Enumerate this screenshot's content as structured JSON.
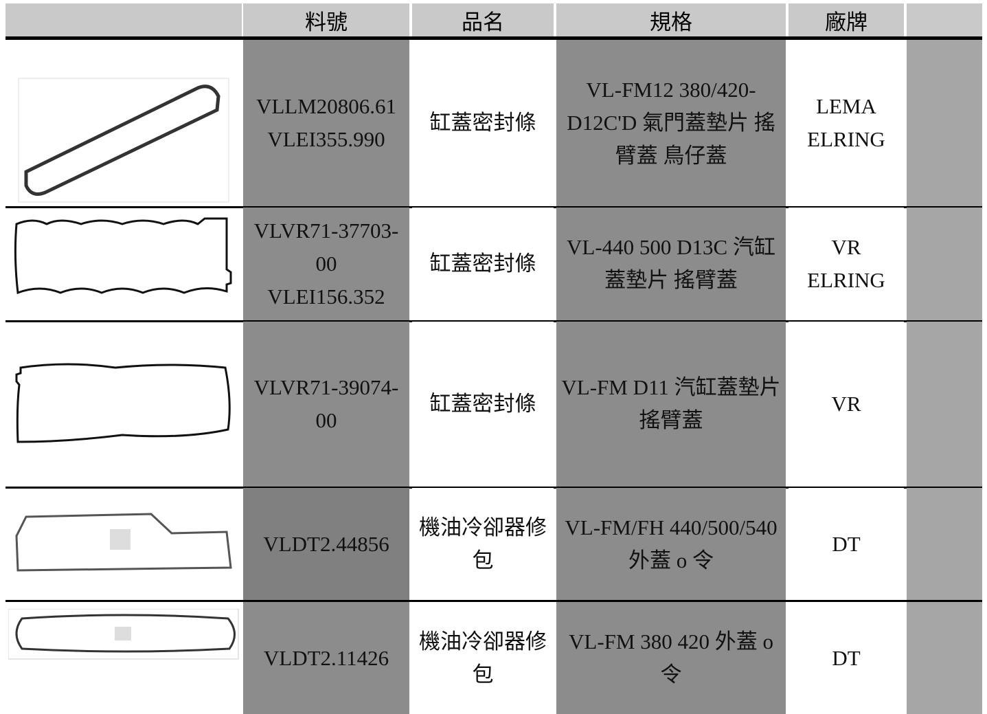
{
  "header": {
    "columns": [
      "料號",
      "品名",
      "規格",
      "廠牌"
    ]
  },
  "table": {
    "rows": [
      {
        "part_numbers": [
          "VLLM20806.61",
          "VLEI355.990"
        ],
        "name": "缸蓋密封條",
        "spec": "VL-FM12 380/420-D12C'D 氣門蓋墊片 搖臂蓋 鳥仔蓋",
        "brands": [
          "LEMA",
          "ELRING"
        ]
      },
      {
        "part_numbers": [
          "VLVR71-37703-00",
          "VLEI156.352"
        ],
        "name": "缸蓋密封條",
        "spec": "VL-440 500 D13C 汽缸蓋墊片 搖臂蓋",
        "brands": [
          "VR",
          "ELRING"
        ]
      },
      {
        "part_numbers": [
          "VLVR71-39074-00"
        ],
        "name": "缸蓋密封條",
        "spec": "VL-FM D11 汽缸蓋墊片 搖臂蓋",
        "brands": [
          "VR"
        ]
      },
      {
        "part_numbers": [
          "VLDT2.44856"
        ],
        "name": "機油冷卻器修包",
        "spec": "VL-FM/FH 440/500/540 外蓋 o 令",
        "brands": [
          "DT"
        ]
      },
      {
        "part_numbers": [
          "VLDT2.11426"
        ],
        "name": "機油冷卻器修包",
        "spec": "VL-FM 380 420 外蓋 o 令",
        "brands": [
          "DT"
        ]
      }
    ]
  }
}
